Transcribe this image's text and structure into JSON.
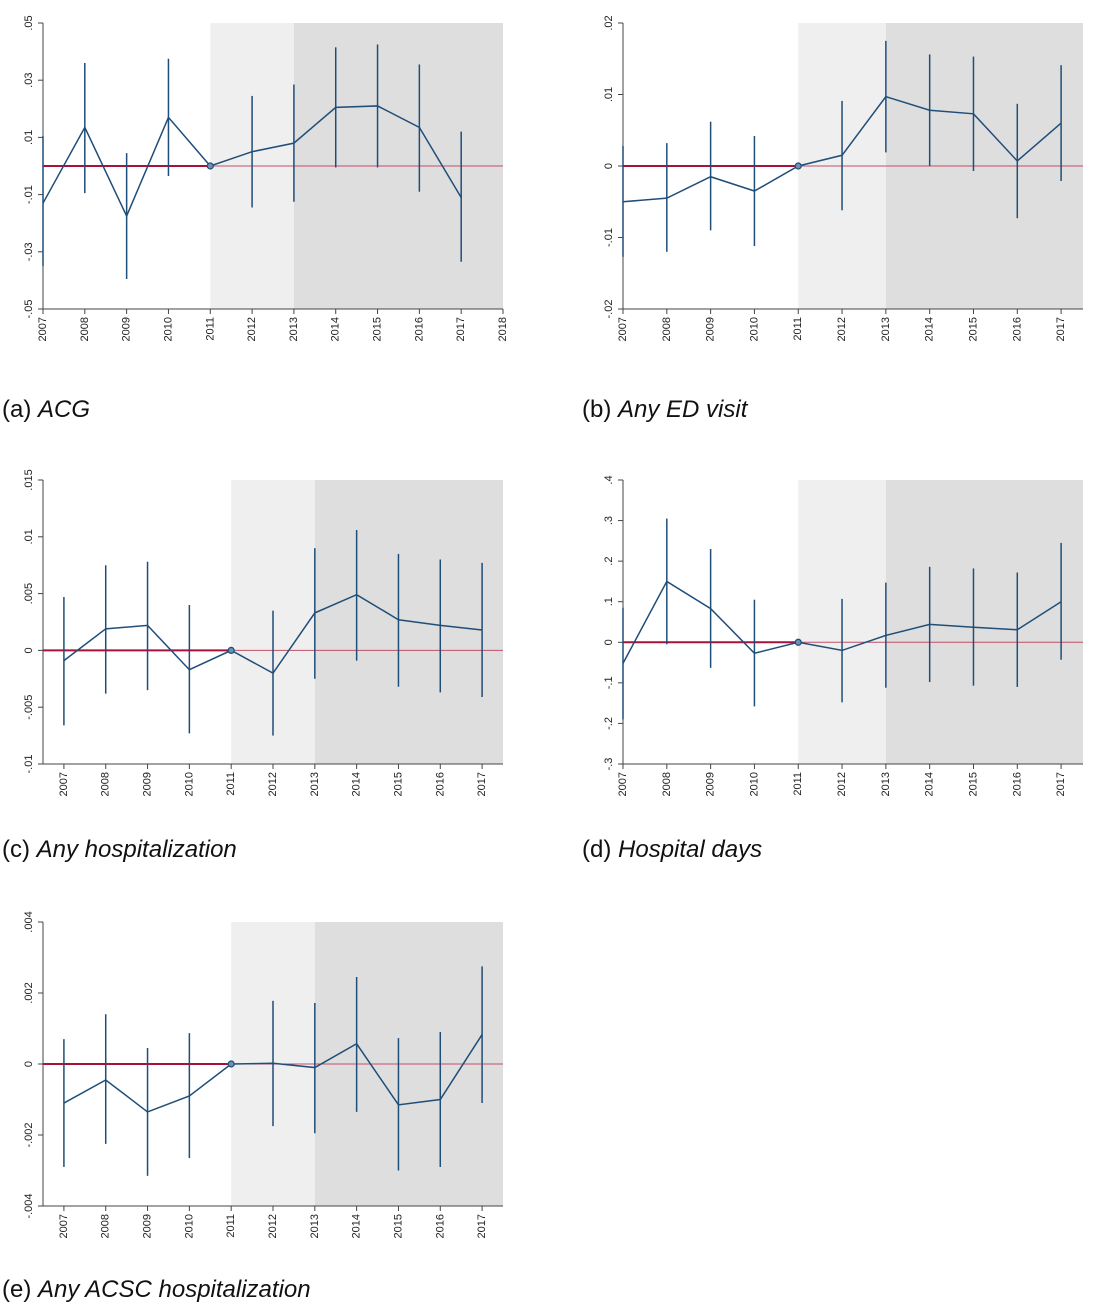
{
  "colors": {
    "line": "#1f4e79",
    "zero_line": "#c0506a",
    "zero_line_pre": "#a8113a",
    "shade_light": "#efefef",
    "shade_dark": "#dedede",
    "axis": "#444444"
  },
  "chart_data": [
    {
      "type": "line",
      "panel": "a",
      "caption_tag": "(a)",
      "caption_name": "ACG",
      "title": "",
      "xlabel": "",
      "ylabel": "",
      "x": [
        2007,
        2008,
        2009,
        2010,
        2011,
        2012,
        2013,
        2014,
        2015,
        2016,
        2017
      ],
      "values": [
        -0.013,
        0.0135,
        -0.0175,
        0.017,
        0.0,
        0.005,
        0.008,
        0.0205,
        0.021,
        0.0135,
        -0.011
      ],
      "ci_lower": [
        -0.035,
        -0.0095,
        -0.0395,
        -0.0035,
        0.0,
        -0.0145,
        -0.0125,
        -0.0005,
        -0.0005,
        -0.009,
        -0.0335
      ],
      "ci_upper": [
        0.0105,
        0.036,
        0.0045,
        0.0375,
        0.0,
        0.0245,
        0.0285,
        0.0415,
        0.0425,
        0.0355,
        0.012
      ],
      "xticks": [
        "2007",
        "2008",
        "2009",
        "2010",
        "2011",
        "2012",
        "2013",
        "2014",
        "2015",
        "2016",
        "2017",
        "2018"
      ],
      "xlim": [
        2007,
        2018
      ],
      "yticks": [
        -0.05,
        -0.03,
        -0.01,
        0.01,
        0.03,
        0.05
      ],
      "ytick_labels": [
        "-.05",
        "-.03",
        "-.01",
        ".01",
        ".03",
        ".05"
      ],
      "ylim": [
        -0.05,
        0.05
      ],
      "shade_light": [
        2011,
        2013
      ],
      "shade_dark": [
        2013,
        2018
      ],
      "reference_year": 2011,
      "grid": false
    },
    {
      "type": "line",
      "panel": "b",
      "caption_tag": "(b)",
      "caption_name": "Any ED visit",
      "title": "",
      "xlabel": "",
      "ylabel": "",
      "x": [
        2007,
        2008,
        2009,
        2010,
        2011,
        2012,
        2013,
        2014,
        2015,
        2016,
        2017
      ],
      "values": [
        -0.005,
        -0.0045,
        -0.0015,
        -0.0035,
        0.0,
        0.0015,
        0.0097,
        0.0078,
        0.0073,
        0.0007,
        0.006
      ],
      "ci_lower": [
        -0.0127,
        -0.012,
        -0.009,
        -0.0112,
        0.0,
        -0.0062,
        0.0019,
        0.0,
        -0.0007,
        -0.0073,
        -0.0021
      ],
      "ci_upper": [
        0.0028,
        0.0032,
        0.0062,
        0.0042,
        0.0,
        0.0091,
        0.0175,
        0.0156,
        0.0153,
        0.0087,
        0.0141
      ],
      "xticks": [
        "2007",
        "2008",
        "2009",
        "2010",
        "2011",
        "2012",
        "2013",
        "2014",
        "2015",
        "2016",
        "2017"
      ],
      "xlim": [
        2007,
        2017.5
      ],
      "yticks": [
        -0.02,
        -0.01,
        0,
        0.01,
        0.02
      ],
      "ytick_labels": [
        "-.02",
        "-.01",
        "0",
        ".01",
        ".02"
      ],
      "ylim": [
        -0.02,
        0.02
      ],
      "shade_light": [
        2011,
        2013
      ],
      "shade_dark": [
        2013,
        2017.5
      ],
      "reference_year": 2011,
      "grid": false
    },
    {
      "type": "line",
      "panel": "c",
      "caption_tag": "(c)",
      "caption_name": "Any hospitalization",
      "title": "",
      "xlabel": "",
      "ylabel": "",
      "x": [
        2007,
        2008,
        2009,
        2010,
        2011,
        2012,
        2013,
        2014,
        2015,
        2016,
        2017
      ],
      "values": [
        -0.0009,
        0.0019,
        0.0022,
        -0.0017,
        0.0,
        -0.002,
        0.0033,
        0.0049,
        0.0027,
        0.0022,
        0.0018
      ],
      "ci_lower": [
        -0.0066,
        -0.0038,
        -0.0035,
        -0.0073,
        0.0,
        -0.0075,
        -0.0025,
        -0.0009,
        -0.0032,
        -0.0037,
        -0.0041
      ],
      "ci_upper": [
        0.0047,
        0.0075,
        0.0078,
        0.004,
        0.0,
        0.0035,
        0.009,
        0.0106,
        0.0085,
        0.008,
        0.0077
      ],
      "xticks": [
        "2007",
        "2008",
        "2009",
        "2010",
        "2011",
        "2012",
        "2013",
        "2014",
        "2015",
        "2016",
        "2017"
      ],
      "xlim": [
        2006.5,
        2017.5
      ],
      "yticks": [
        -0.01,
        -0.005,
        0,
        0.005,
        0.01,
        0.015
      ],
      "ytick_labels": [
        "-.01",
        "-.005",
        "0",
        ".005",
        ".01",
        ".015"
      ],
      "ylim": [
        -0.01,
        0.015
      ],
      "shade_light": [
        2011,
        2013
      ],
      "shade_dark": [
        2013,
        2017.5
      ],
      "reference_year": 2011,
      "grid": false
    },
    {
      "type": "line",
      "panel": "d",
      "caption_tag": "(d)",
      "caption_name": "Hospital days",
      "title": "",
      "xlabel": "",
      "ylabel": "",
      "x": [
        2007,
        2008,
        2009,
        2010,
        2011,
        2012,
        2013,
        2014,
        2015,
        2016,
        2017
      ],
      "values": [
        -0.052,
        0.15,
        0.083,
        -0.027,
        0.0,
        -0.02,
        0.017,
        0.044,
        0.037,
        0.031,
        0.1
      ],
      "ci_lower": [
        -0.19,
        -0.005,
        -0.063,
        -0.158,
        0.0,
        -0.148,
        -0.112,
        -0.098,
        -0.107,
        -0.11,
        -0.043
      ],
      "ci_upper": [
        0.085,
        0.305,
        0.23,
        0.105,
        0.0,
        0.107,
        0.147,
        0.186,
        0.182,
        0.172,
        0.245
      ],
      "xticks": [
        "2007",
        "2008",
        "2009",
        "2010",
        "2011",
        "2012",
        "2013",
        "2014",
        "2015",
        "2016",
        "2017"
      ],
      "xlim": [
        2007,
        2017.5
      ],
      "yticks": [
        -0.3,
        -0.2,
        -0.1,
        0,
        0.1,
        0.2,
        0.3,
        0.4
      ],
      "ytick_labels": [
        "-.3",
        "-.2",
        "-.1",
        "0",
        ".1",
        ".2",
        ".3",
        ".4"
      ],
      "ylim": [
        -0.3,
        0.4
      ],
      "shade_light": [
        2011,
        2013
      ],
      "shade_dark": [
        2013,
        2017.5
      ],
      "reference_year": 2011,
      "grid": false
    },
    {
      "type": "line",
      "panel": "e",
      "caption_tag": "(e)",
      "caption_name": "Any ACSC hospitalization",
      "title": "",
      "xlabel": "",
      "ylabel": "",
      "x": [
        2007,
        2008,
        2009,
        2010,
        2011,
        2012,
        2013,
        2014,
        2015,
        2016,
        2017
      ],
      "values": [
        -0.0011,
        -0.00045,
        -0.00135,
        -0.0009,
        0.0,
        2e-05,
        -0.0001,
        0.00057,
        -0.00115,
        -0.001,
        0.00083
      ],
      "ci_lower": [
        -0.0029,
        -0.00225,
        -0.00315,
        -0.00265,
        0.0,
        -0.00175,
        -0.00195,
        -0.00135,
        -0.003,
        -0.0029,
        -0.0011
      ],
      "ci_upper": [
        0.0007,
        0.0014,
        0.00045,
        0.00087,
        0.0,
        0.00178,
        0.00172,
        0.00245,
        0.00073,
        0.0009,
        0.00275
      ],
      "xticks": [
        "2007",
        "2008",
        "2009",
        "2010",
        "2011",
        "2012",
        "2013",
        "2014",
        "2015",
        "2016",
        "2017"
      ],
      "xlim": [
        2006.5,
        2017.5
      ],
      "yticks": [
        -0.004,
        -0.002,
        0,
        0.002,
        0.004
      ],
      "ytick_labels": [
        "-.004",
        "-.002",
        "0",
        ".002",
        ".004"
      ],
      "ylim": [
        -0.004,
        0.004
      ],
      "shade_light": [
        2011,
        2013
      ],
      "shade_dark": [
        2013,
        2017.5
      ],
      "reference_year": 2011,
      "grid": false
    }
  ]
}
